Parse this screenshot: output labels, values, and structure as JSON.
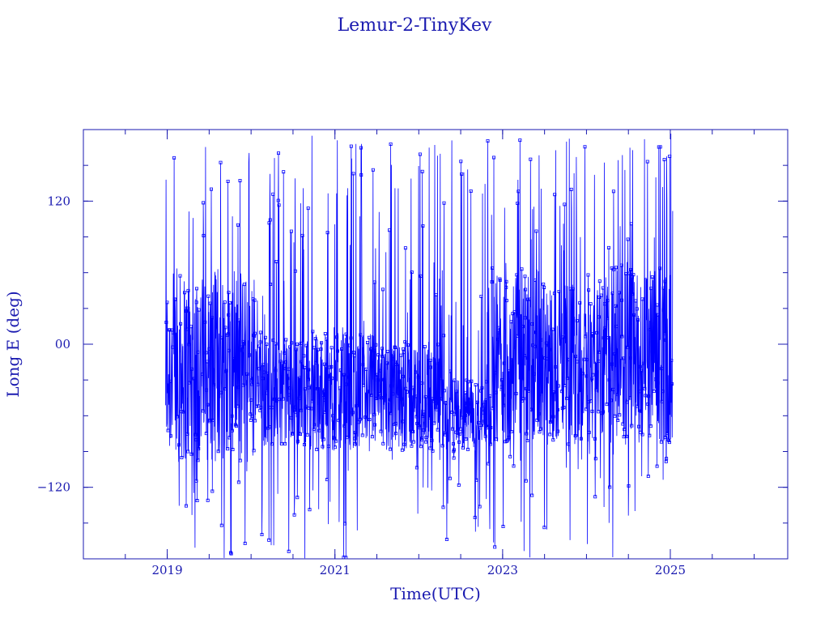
{
  "chart_data": {
    "type": "line",
    "title": "Lemur-2-TinyKev",
    "xlabel": "Time(UTC)",
    "ylabel": "Long E (deg)",
    "xlim": [
      2018.0,
      2026.4
    ],
    "ylim": [
      -180,
      180
    ],
    "x_tick_labels": [
      {
        "value": 2019,
        "label": "2019"
      },
      {
        "value": 2021,
        "label": "2021"
      },
      {
        "value": 2023,
        "label": "2023"
      },
      {
        "value": 2025,
        "label": "2025"
      }
    ],
    "x_minor_ticks": [
      2018.5,
      2019.0,
      2019.5,
      2020.0,
      2020.5,
      2021.0,
      2021.5,
      2022.0,
      2022.5,
      2023.0,
      2023.5,
      2024.0,
      2024.5,
      2025.0,
      2025.5,
      2026.0
    ],
    "y_tick_labels": [
      {
        "value": 120,
        "label": "120"
      },
      {
        "value": 0,
        "label": "00"
      },
      {
        "value": -120,
        "label": "−120"
      }
    ],
    "y_minor_ticks": [
      -150,
      -120,
      -90,
      -60,
      -30,
      0,
      30,
      60,
      90,
      120,
      150
    ],
    "grid": false,
    "line_color": "#0000ff",
    "axis_color": "#1a1ab0",
    "series": [
      {
        "data_start": 2018.98,
        "data_end": 2025.03,
        "sample_step": 0.003,
        "regimes": [
          {
            "x": [
              2018.98,
              2020.05
            ],
            "center": -20,
            "amplitude": 80,
            "note": "sparse scatter, early mission"
          },
          {
            "x": [
              2020.05,
              2020.7
            ],
            "center": -40,
            "amplitude": 45
          },
          {
            "x": [
              2020.7,
              2021.5
            ],
            "center": -40,
            "amplitude": 50
          },
          {
            "x": [
              2021.5,
              2022.3
            ],
            "center": -45,
            "amplitude": 45
          },
          {
            "x": [
              2022.3,
              2022.8
            ],
            "center": -60,
            "amplitude": 30
          },
          {
            "x": [
              2022.8,
              2023.5
            ],
            "center": -10,
            "amplitude": 75
          },
          {
            "x": [
              2023.5,
              2024.2
            ],
            "center": -15,
            "amplitude": 70
          },
          {
            "x": [
              2024.2,
              2025.03
            ],
            "center": -10,
            "amplitude": 75
          }
        ]
      }
    ]
  }
}
